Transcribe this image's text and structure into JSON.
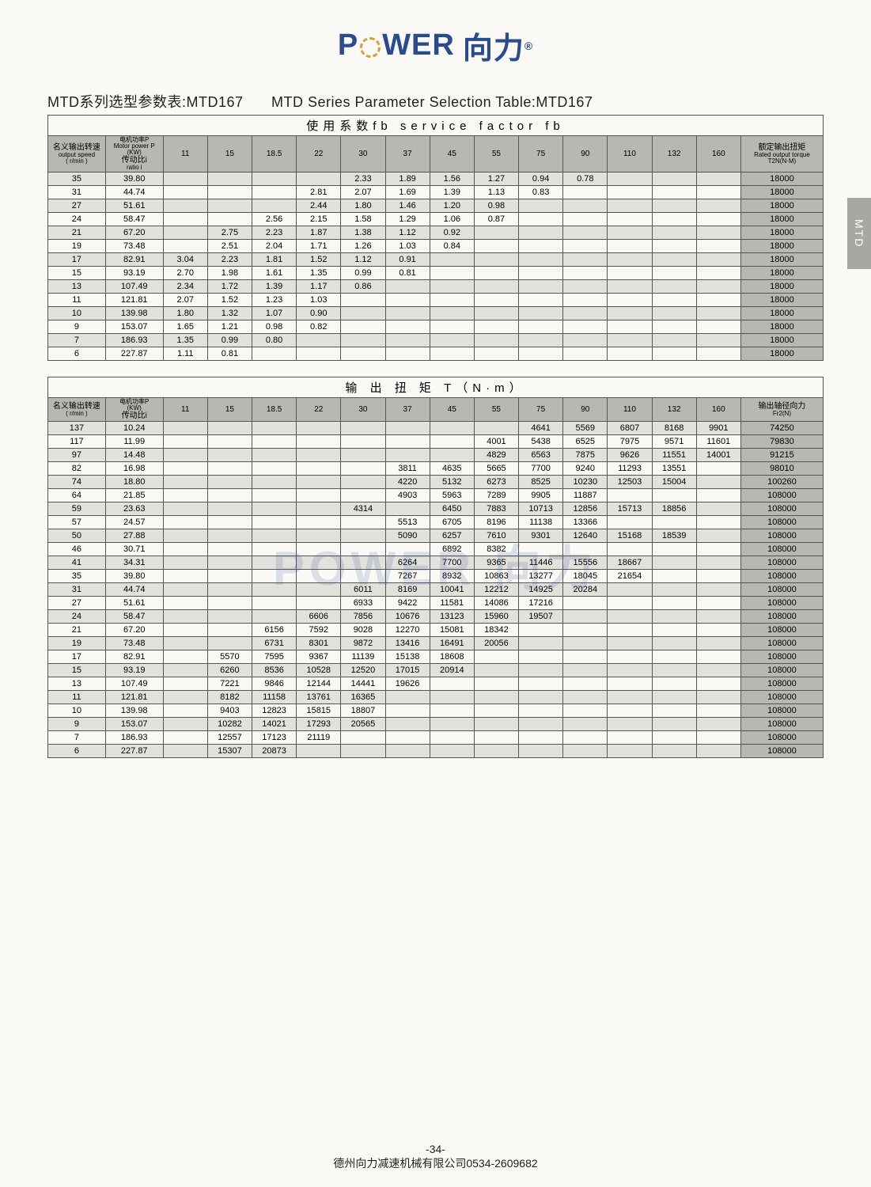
{
  "logo": {
    "p1": "P",
    "p2": "WER",
    "cn": "向力",
    "r": "®"
  },
  "side_tab": "MTD",
  "watermark": "POWER 向力",
  "title": {
    "cn": "MTD系列选型参数表:MTD167",
    "en": "MTD Series Parameter Selection Table:MTD167"
  },
  "footer": {
    "page": "-34-",
    "company": "德州向力减速机械有限公司0534-2609682"
  },
  "table1": {
    "header_label": "使用系数fb     service  factor  fb",
    "col_speed_cn": "名义输出转速",
    "col_speed_en": "output speed",
    "col_speed_unit": "( r/min )",
    "col_ratio_cn": "传动比i",
    "col_ratio_en": "ratio i",
    "col_power_cn": "电机功率P",
    "col_power_en": "Motor power P",
    "col_power_unit": "(KW)",
    "col_last_cn": "额定输出扭矩",
    "col_last_en": "Rated output torque",
    "col_last_unit": "T2N(N·M)",
    "power_cols": [
      "11",
      "15",
      "18.5",
      "22",
      "30",
      "37",
      "45",
      "55",
      "75",
      "90",
      "110",
      "132",
      "160"
    ],
    "col_widths_pct": [
      7,
      7,
      5.4,
      5.4,
      5.4,
      5.4,
      5.4,
      5.4,
      5.4,
      5.4,
      5.4,
      5.4,
      5.4,
      5.4,
      5.4,
      10
    ],
    "rows": [
      {
        "speed": "35",
        "ratio": "39.80",
        "v": [
          "",
          "",
          "",
          "",
          "2.33",
          "1.89",
          "1.56",
          "1.27",
          "0.94",
          "0.78",
          "",
          "",
          ""
        ],
        "last": "18000"
      },
      {
        "speed": "31",
        "ratio": "44.74",
        "v": [
          "",
          "",
          "",
          "2.81",
          "2.07",
          "1.69",
          "1.39",
          "1.13",
          "0.83",
          "",
          "",
          "",
          ""
        ],
        "last": "18000"
      },
      {
        "speed": "27",
        "ratio": "51.61",
        "v": [
          "",
          "",
          "",
          "2.44",
          "1.80",
          "1.46",
          "1.20",
          "0.98",
          "",
          "",
          "",
          "",
          ""
        ],
        "last": "18000"
      },
      {
        "speed": "24",
        "ratio": "58.47",
        "v": [
          "",
          "",
          "2.56",
          "2.15",
          "1.58",
          "1.29",
          "1.06",
          "0.87",
          "",
          "",
          "",
          "",
          ""
        ],
        "last": "18000"
      },
      {
        "speed": "21",
        "ratio": "67.20",
        "v": [
          "",
          "2.75",
          "2.23",
          "1.87",
          "1.38",
          "1.12",
          "0.92",
          "",
          "",
          "",
          "",
          "",
          ""
        ],
        "last": "18000"
      },
      {
        "speed": "19",
        "ratio": "73.48",
        "v": [
          "",
          "2.51",
          "2.04",
          "1.71",
          "1.26",
          "1.03",
          "0.84",
          "",
          "",
          "",
          "",
          "",
          ""
        ],
        "last": "18000"
      },
      {
        "speed": "17",
        "ratio": "82.91",
        "v": [
          "3.04",
          "2.23",
          "1.81",
          "1.52",
          "1.12",
          "0.91",
          "",
          "",
          "",
          "",
          "",
          "",
          ""
        ],
        "last": "18000"
      },
      {
        "speed": "15",
        "ratio": "93.19",
        "v": [
          "2.70",
          "1.98",
          "1.61",
          "1.35",
          "0.99",
          "0.81",
          "",
          "",
          "",
          "",
          "",
          "",
          ""
        ],
        "last": "18000"
      },
      {
        "speed": "13",
        "ratio": "107.49",
        "v": [
          "2.34",
          "1.72",
          "1.39",
          "1.17",
          "0.86",
          "",
          "",
          "",
          "",
          "",
          "",
          "",
          ""
        ],
        "last": "18000"
      },
      {
        "speed": "11",
        "ratio": "121.81",
        "v": [
          "2.07",
          "1.52",
          "1.23",
          "1.03",
          "",
          "",
          "",
          "",
          "",
          "",
          "",
          "",
          ""
        ],
        "last": "18000"
      },
      {
        "speed": "10",
        "ratio": "139.98",
        "v": [
          "1.80",
          "1.32",
          "1.07",
          "0.90",
          "",
          "",
          "",
          "",
          "",
          "",
          "",
          "",
          ""
        ],
        "last": "18000"
      },
      {
        "speed": "9",
        "ratio": "153.07",
        "v": [
          "1.65",
          "1.21",
          "0.98",
          "0.82",
          "",
          "",
          "",
          "",
          "",
          "",
          "",
          "",
          ""
        ],
        "last": "18000"
      },
      {
        "speed": "7",
        "ratio": "186.93",
        "v": [
          "1.35",
          "0.99",
          "0.80",
          "",
          "",
          "",
          "",
          "",
          "",
          "",
          "",
          "",
          ""
        ],
        "last": "18000"
      },
      {
        "speed": "6",
        "ratio": "227.87",
        "v": [
          "1.11",
          "0.81",
          "",
          "",
          "",
          "",
          "",
          "",
          "",
          "",
          "",
          "",
          ""
        ],
        "last": "18000"
      }
    ]
  },
  "table2": {
    "header_label": "输 出 扭 矩  T（N·m）",
    "col_speed_cn": "名义输出转速",
    "col_speed_unit": "( r/min )",
    "col_ratio_cn": "传动比i",
    "col_power_cn": "电机功率P",
    "col_power_unit": "(KW)",
    "col_last_cn": "输出轴径向力",
    "col_last_unit": "Fr2(N)",
    "power_cols": [
      "11",
      "15",
      "18.5",
      "22",
      "30",
      "37",
      "45",
      "55",
      "75",
      "90",
      "110",
      "132",
      "160"
    ],
    "rows": [
      {
        "speed": "137",
        "ratio": "10.24",
        "v": [
          "",
          "",
          "",
          "",
          "",
          "",
          "",
          "",
          "4641",
          "5569",
          "6807",
          "8168",
          "9901"
        ],
        "last": "74250"
      },
      {
        "speed": "117",
        "ratio": "11.99",
        "v": [
          "",
          "",
          "",
          "",
          "",
          "",
          "",
          "4001",
          "5438",
          "6525",
          "7975",
          "9571",
          "11601"
        ],
        "last": "79830"
      },
      {
        "speed": "97",
        "ratio": "14.48",
        "v": [
          "",
          "",
          "",
          "",
          "",
          "",
          "",
          "4829",
          "6563",
          "7875",
          "9626",
          "11551",
          "14001"
        ],
        "last": "91215"
      },
      {
        "speed": "82",
        "ratio": "16.98",
        "v": [
          "",
          "",
          "",
          "",
          "",
          "3811",
          "4635",
          "5665",
          "7700",
          "9240",
          "11293",
          "13551",
          ""
        ],
        "last": "98010"
      },
      {
        "speed": "74",
        "ratio": "18.80",
        "v": [
          "",
          "",
          "",
          "",
          "",
          "4220",
          "5132",
          "6273",
          "8525",
          "10230",
          "12503",
          "15004",
          ""
        ],
        "last": "100260"
      },
      {
        "speed": "64",
        "ratio": "21.85",
        "v": [
          "",
          "",
          "",
          "",
          "",
          "4903",
          "5963",
          "7289",
          "9905",
          "11887",
          "",
          "",
          ""
        ],
        "last": "108000"
      },
      {
        "speed": "59",
        "ratio": "23.63",
        "v": [
          "",
          "",
          "",
          "",
          "4314",
          "",
          "6450",
          "7883",
          "10713",
          "12856",
          "15713",
          "18856",
          ""
        ],
        "last": "108000"
      },
      {
        "speed": "57",
        "ratio": "24.57",
        "v": [
          "",
          "",
          "",
          "",
          "",
          "5513",
          "6705",
          "8196",
          "11138",
          "13366",
          "",
          "",
          ""
        ],
        "last": "108000"
      },
      {
        "speed": "50",
        "ratio": "27.88",
        "v": [
          "",
          "",
          "",
          "",
          "",
          "5090",
          "6257",
          "7610",
          "9301",
          "12640",
          "15168",
          "18539",
          ""
        ],
        "last": "108000"
      },
      {
        "speed": "46",
        "ratio": "30.71",
        "v": [
          "",
          "",
          "",
          "",
          "",
          "",
          "6892",
          "8382",
          "",
          "",
          "",
          "",
          ""
        ],
        "last": "108000"
      },
      {
        "speed": "41",
        "ratio": "34.31",
        "v": [
          "",
          "",
          "",
          "",
          "",
          "6264",
          "7700",
          "9365",
          "11446",
          "15556",
          "18667",
          "",
          ""
        ],
        "last": "108000"
      },
      {
        "speed": "35",
        "ratio": "39.80",
        "v": [
          "",
          "",
          "",
          "",
          "",
          "7267",
          "8932",
          "10863",
          "13277",
          "18045",
          "21654",
          "",
          ""
        ],
        "last": "108000"
      },
      {
        "speed": "31",
        "ratio": "44.74",
        "v": [
          "",
          "",
          "",
          "",
          "6011",
          "8169",
          "10041",
          "12212",
          "14925",
          "20284",
          "",
          "",
          ""
        ],
        "last": "108000"
      },
      {
        "speed": "27",
        "ratio": "51.61",
        "v": [
          "",
          "",
          "",
          "",
          "6933",
          "9422",
          "11581",
          "14086",
          "17216",
          "",
          "",
          "",
          ""
        ],
        "last": "108000"
      },
      {
        "speed": "24",
        "ratio": "58.47",
        "v": [
          "",
          "",
          "",
          "6606",
          "7856",
          "10676",
          "13123",
          "15960",
          "19507",
          "",
          "",
          "",
          ""
        ],
        "last": "108000"
      },
      {
        "speed": "21",
        "ratio": "67.20",
        "v": [
          "",
          "",
          "6156",
          "7592",
          "9028",
          "12270",
          "15081",
          "18342",
          "",
          "",
          "",
          "",
          ""
        ],
        "last": "108000"
      },
      {
        "speed": "19",
        "ratio": "73.48",
        "v": [
          "",
          "",
          "6731",
          "8301",
          "9872",
          "13416",
          "16491",
          "20056",
          "",
          "",
          "",
          "",
          ""
        ],
        "last": "108000"
      },
      {
        "speed": "17",
        "ratio": "82.91",
        "v": [
          "",
          "5570",
          "7595",
          "9367",
          "11139",
          "15138",
          "18608",
          "",
          "",
          "",
          "",
          "",
          ""
        ],
        "last": "108000"
      },
      {
        "speed": "15",
        "ratio": "93.19",
        "v": [
          "",
          "6260",
          "8536",
          "10528",
          "12520",
          "17015",
          "20914",
          "",
          "",
          "",
          "",
          "",
          ""
        ],
        "last": "108000"
      },
      {
        "speed": "13",
        "ratio": "107.49",
        "v": [
          "",
          "7221",
          "9846",
          "12144",
          "14441",
          "19626",
          "",
          "",
          "",
          "",
          "",
          "",
          ""
        ],
        "last": "108000"
      },
      {
        "speed": "11",
        "ratio": "121.81",
        "v": [
          "",
          "8182",
          "11158",
          "13761",
          "16365",
          "",
          "",
          "",
          "",
          "",
          "",
          "",
          ""
        ],
        "last": "108000"
      },
      {
        "speed": "10",
        "ratio": "139.98",
        "v": [
          "",
          "9403",
          "12823",
          "15815",
          "18807",
          "",
          "",
          "",
          "",
          "",
          "",
          "",
          ""
        ],
        "last": "108000"
      },
      {
        "speed": "9",
        "ratio": "153.07",
        "v": [
          "",
          "10282",
          "14021",
          "17293",
          "20565",
          "",
          "",
          "",
          "",
          "",
          "",
          "",
          ""
        ],
        "last": "108000"
      },
      {
        "speed": "7",
        "ratio": "186.93",
        "v": [
          "",
          "12557",
          "17123",
          "21119",
          "",
          "",
          "",
          "",
          "",
          "",
          "",
          "",
          ""
        ],
        "last": "108000"
      },
      {
        "speed": "6",
        "ratio": "227.87",
        "v": [
          "",
          "15307",
          "20873",
          "",
          "",
          "",
          "",
          "",
          "",
          "",
          "",
          "",
          ""
        ],
        "last": "108000"
      }
    ]
  }
}
